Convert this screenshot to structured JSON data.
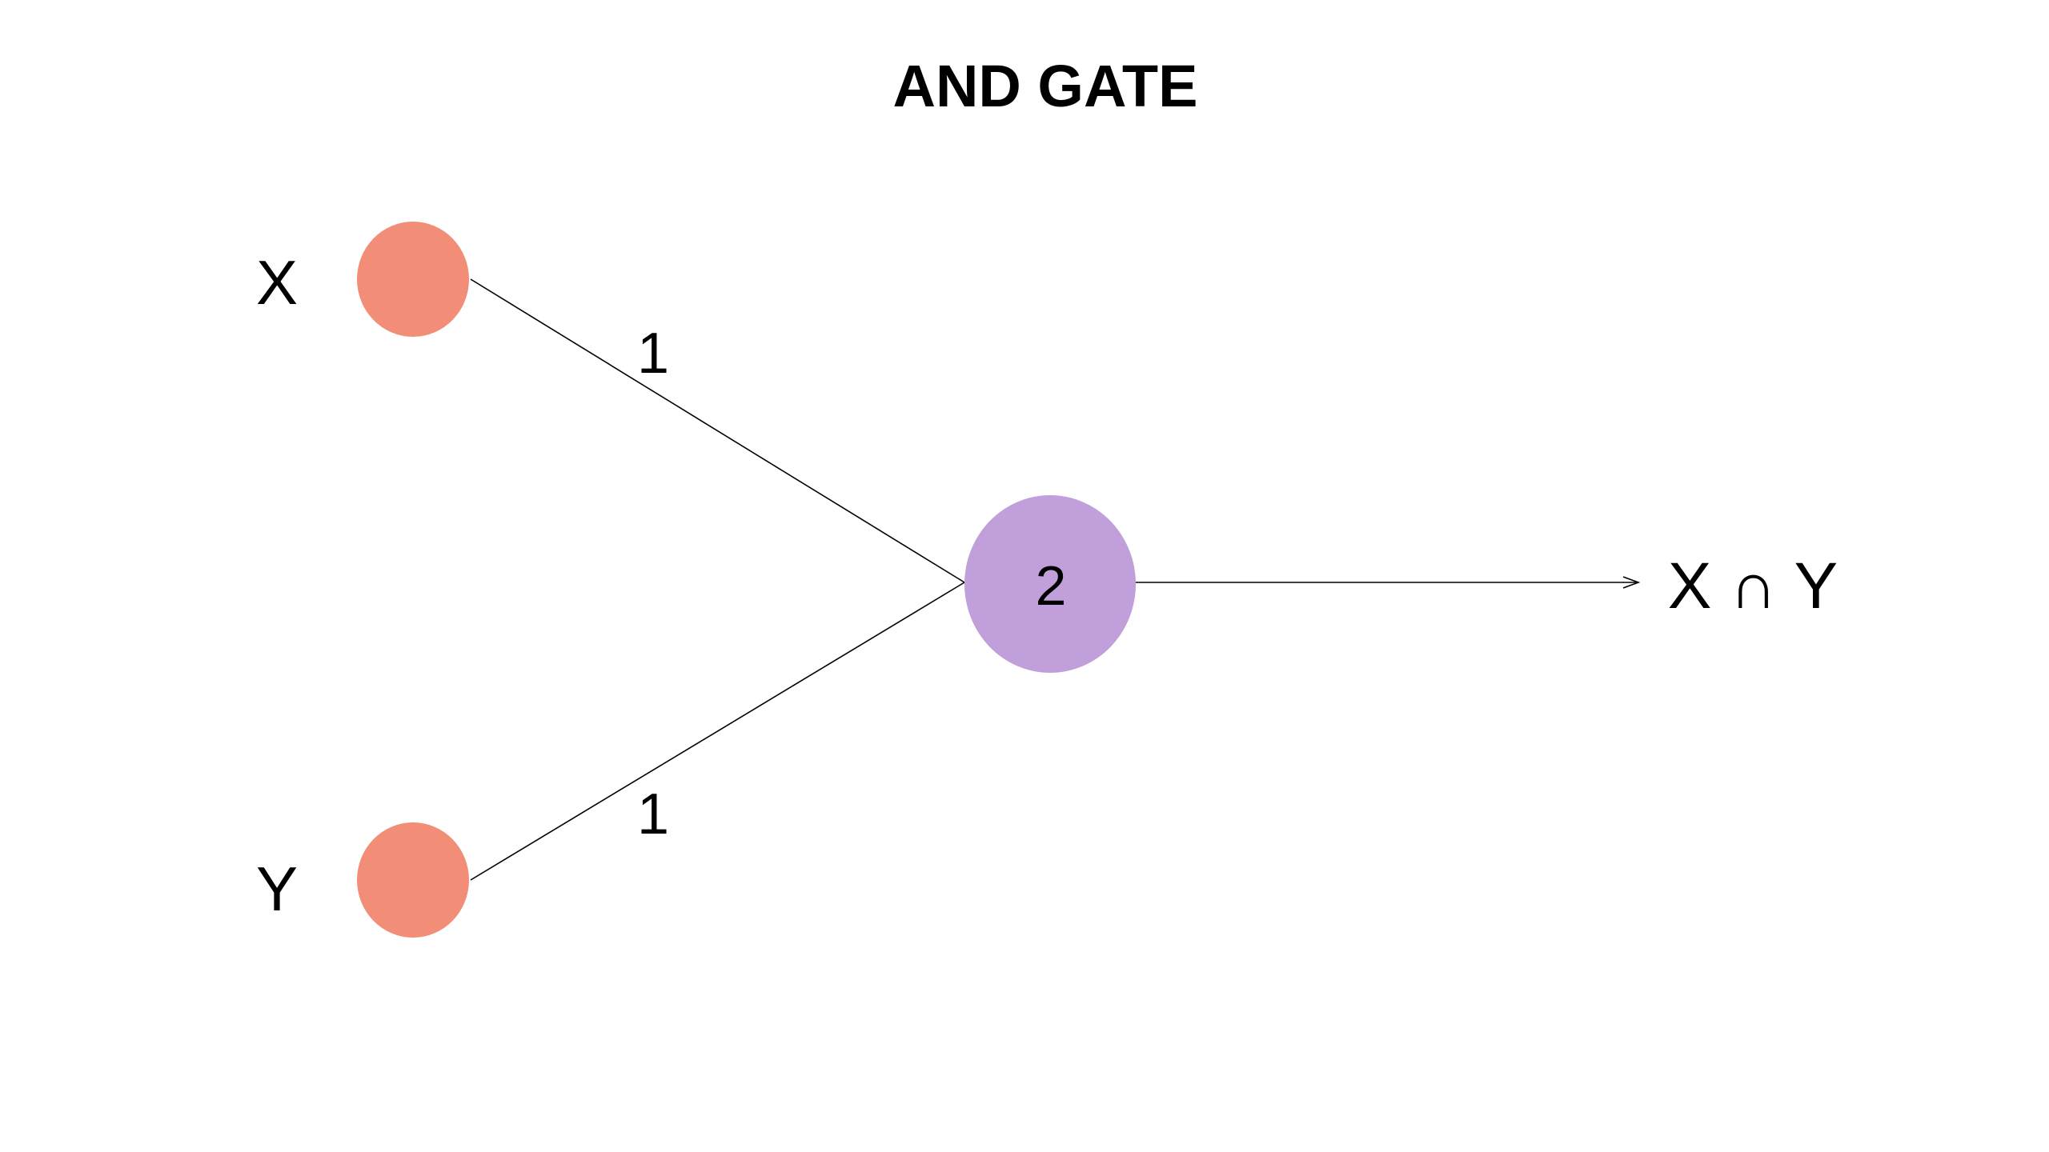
{
  "title": "AND GATE",
  "colors": {
    "input_node": "#F28E78",
    "output_node": "#C09FDA",
    "edge": "#000000",
    "background": "#FFFFFF"
  },
  "inputs": [
    {
      "label": "X",
      "weight": "1"
    },
    {
      "label": "Y",
      "weight": "1"
    }
  ],
  "neuron": {
    "threshold": "2"
  },
  "output": {
    "label": "X ∩ Y"
  }
}
